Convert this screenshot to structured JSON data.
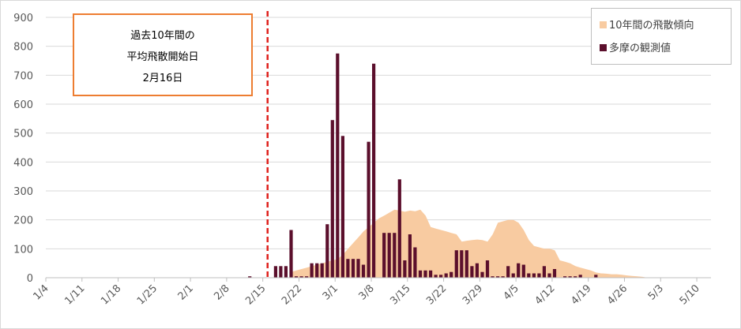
{
  "colors": {
    "area": "#f8cba1",
    "bar": "#5b0f2c",
    "grid": "#d9d9d9",
    "marker_line": "#e0211d",
    "annotation_border": "#ed7d31"
  },
  "annotation": {
    "line1": "過去10年間の",
    "line2": "平均飛散開始日",
    "line3": "2月16日"
  },
  "chart_data": {
    "type": "bar",
    "ylim": [
      0,
      900
    ],
    "yticks": [
      0,
      100,
      200,
      300,
      400,
      500,
      600,
      700,
      800,
      900
    ],
    "x_tick_labels": [
      "1/4",
      "1/11",
      "1/18",
      "1/25",
      "2/1",
      "2/8",
      "2/15",
      "2/22",
      "3/1",
      "3/8",
      "3/15",
      "3/22",
      "3/29",
      "4/5",
      "4/12",
      "4/19",
      "4/26",
      "5/3",
      "5/10"
    ],
    "legend_position": "top-right",
    "grid": true,
    "marker_date": "2/16",
    "series": [
      {
        "name": "10年間の飛散傾向",
        "kind": "area",
        "x": [
          "2/20",
          "2/21",
          "2/22",
          "2/23",
          "2/24",
          "2/25",
          "2/26",
          "2/27",
          "2/28",
          "3/1",
          "3/2",
          "3/3",
          "3/4",
          "3/5",
          "3/6",
          "3/7",
          "3/8",
          "3/9",
          "3/10",
          "3/11",
          "3/12",
          "3/13",
          "3/14",
          "3/15",
          "3/16",
          "3/17",
          "3/18",
          "3/19",
          "3/20",
          "3/21",
          "3/22",
          "3/23",
          "3/24",
          "3/25",
          "3/26",
          "3/27",
          "3/28",
          "3/29",
          "3/30",
          "3/31",
          "4/1",
          "4/2",
          "4/3",
          "4/4",
          "4/5",
          "4/6",
          "4/7",
          "4/8",
          "4/9",
          "4/10",
          "4/11",
          "4/12",
          "4/13",
          "4/14",
          "4/15",
          "4/16",
          "4/17",
          "4/18",
          "4/19",
          "4/20",
          "4/21",
          "4/22",
          "4/23",
          "4/24",
          "4/25",
          "4/26",
          "4/27",
          "4/28",
          "4/29",
          "4/30"
        ],
        "values": [
          20,
          25,
          30,
          35,
          40,
          45,
          50,
          55,
          60,
          65,
          80,
          100,
          120,
          140,
          160,
          175,
          190,
          205,
          215,
          225,
          235,
          232,
          228,
          232,
          230,
          235,
          215,
          175,
          170,
          165,
          160,
          155,
          150,
          125,
          128,
          130,
          132,
          130,
          125,
          150,
          190,
          195,
          200,
          200,
          190,
          165,
          130,
          110,
          105,
          100,
          100,
          95,
          60,
          55,
          50,
          40,
          35,
          30,
          25,
          18,
          15,
          14,
          12,
          12,
          10,
          8,
          6,
          5,
          3,
          0
        ]
      },
      {
        "name": "多摩の観測値",
        "kind": "bar",
        "x": [
          "2/12",
          "2/13",
          "2/14",
          "2/15",
          "2/16",
          "2/17",
          "2/18",
          "2/19",
          "2/20",
          "2/21",
          "2/22",
          "2/23",
          "2/24",
          "2/25",
          "2/26",
          "2/27",
          "2/28",
          "3/1",
          "3/2",
          "3/3",
          "3/4",
          "3/5",
          "3/6",
          "3/7",
          "3/8",
          "3/9",
          "3/10",
          "3/11",
          "3/12",
          "3/13",
          "3/14",
          "3/15",
          "3/16",
          "3/17",
          "3/18",
          "3/19",
          "3/20",
          "3/21",
          "3/22",
          "3/23",
          "3/24",
          "3/25",
          "3/26",
          "3/27",
          "3/28",
          "3/29",
          "3/30",
          "3/31",
          "4/1",
          "4/2",
          "4/3",
          "4/4",
          "4/5",
          "4/6",
          "4/7",
          "4/8",
          "4/9",
          "4/10",
          "4/11",
          "4/12",
          "4/13",
          "4/14",
          "4/15",
          "4/16",
          "4/17",
          "4/18",
          "4/19",
          "4/20",
          "4/21",
          "4/22"
        ],
        "values": [
          5,
          0,
          0,
          0,
          0,
          40,
          40,
          40,
          165,
          5,
          5,
          5,
          50,
          50,
          50,
          185,
          545,
          775,
          490,
          65,
          65,
          65,
          45,
          470,
          740,
          0,
          155,
          155,
          155,
          340,
          60,
          150,
          105,
          25,
          25,
          25,
          10,
          10,
          15,
          20,
          95,
          95,
          95,
          40,
          50,
          20,
          60,
          5,
          5,
          5,
          40,
          15,
          50,
          45,
          15,
          15,
          15,
          40,
          15,
          30,
          0,
          5,
          5,
          5,
          10,
          0,
          0,
          10,
          0,
          0
        ]
      }
    ]
  }
}
